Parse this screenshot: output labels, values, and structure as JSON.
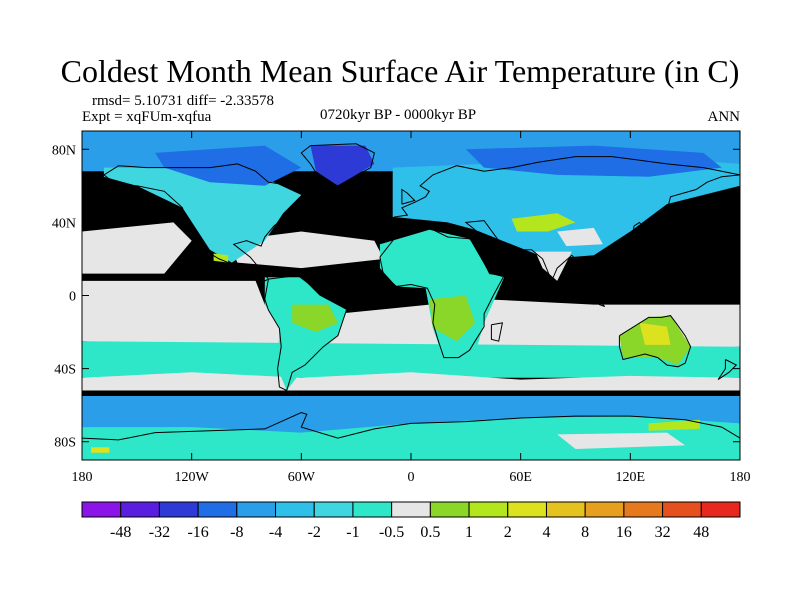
{
  "title": "Coldest Month Mean Surface Air Temperature (in C)",
  "stats": {
    "rmsd_line": "rmsd= 5.10731 diff= -2.33578",
    "expt_line": "Expt = xqFUm-xqfua",
    "period": "0720kyr BP - 0000kyr BP",
    "season": "ANN"
  },
  "axes": {
    "lat_labels": [
      "80N",
      "40N",
      "0",
      "40S",
      "80S"
    ],
    "lat_values": [
      80,
      40,
      0,
      -40,
      -80
    ],
    "lon_labels": [
      "180",
      "120W",
      "60W",
      "0",
      "60E",
      "120E",
      "180"
    ],
    "lon_values": [
      -180,
      -120,
      -60,
      0,
      60,
      120,
      180
    ]
  },
  "colorbar": {
    "colors": [
      "#8b14e8",
      "#5a1ee0",
      "#2d3ad6",
      "#1f6ee6",
      "#2a9ee8",
      "#2ec0e8",
      "#3fd6e0",
      "#2ee6c8",
      "#e6e6e6",
      "#8ad629",
      "#b4e61e",
      "#dce21e",
      "#e6c21e",
      "#e6a01e",
      "#e6781e",
      "#e6501e",
      "#e6281e"
    ],
    "labels": [
      "-48",
      "-32",
      "-16",
      "-8",
      "-4",
      "-2",
      "-1",
      "-0.5",
      "0.5",
      "1",
      "2",
      "4",
      "8",
      "16",
      "32",
      "48"
    ]
  },
  "map_colors": {
    "neutral": "#e6e6e6",
    "cool": "#2ee6c8",
    "light_blue": "#3fd6e0",
    "mid_blue": "#2ec0e8",
    "blue": "#2a9ee8",
    "deep_blue": "#1f6ee6",
    "very_deep": "#2d3ad6",
    "green": "#8ad629",
    "yellow_green": "#b4e61e",
    "yellow": "#dce21e",
    "coast": "#000000"
  }
}
